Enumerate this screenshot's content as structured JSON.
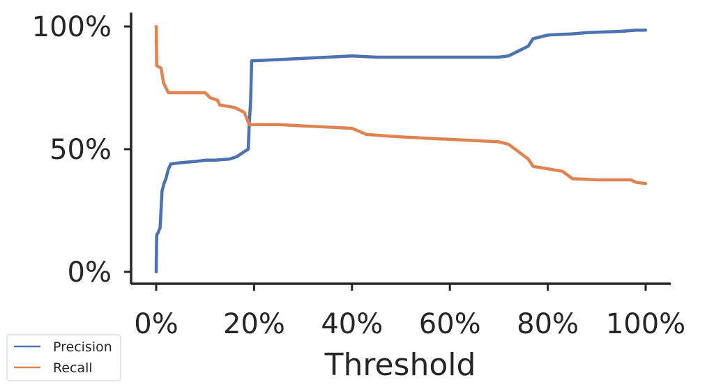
{
  "chart_data": {
    "type": "line",
    "xlabel": "Threshold",
    "ylabel": "",
    "xlim": [
      0,
      1
    ],
    "ylim": [
      0,
      1
    ],
    "x_ticks": [
      {
        "value": 0,
        "label": "0%"
      },
      {
        "value": 0.2,
        "label": "20%"
      },
      {
        "value": 0.4,
        "label": "40%"
      },
      {
        "value": 0.6,
        "label": "60%"
      },
      {
        "value": 0.8,
        "label": "80%"
      },
      {
        "value": 1.0,
        "label": "100%"
      }
    ],
    "y_ticks": [
      {
        "value": 0,
        "label": "0%"
      },
      {
        "value": 0.5,
        "label": "50%"
      },
      {
        "value": 1.0,
        "label": "100%"
      }
    ],
    "grid": false,
    "legend_position": "bottom-left",
    "series": [
      {
        "name": "Precision",
        "color": "#4c72b0",
        "points": [
          [
            0.0,
            0.0
          ],
          [
            0.001,
            0.15
          ],
          [
            0.004,
            0.16
          ],
          [
            0.008,
            0.18
          ],
          [
            0.012,
            0.33
          ],
          [
            0.016,
            0.36
          ],
          [
            0.02,
            0.38
          ],
          [
            0.025,
            0.42
          ],
          [
            0.03,
            0.44
          ],
          [
            0.05,
            0.445
          ],
          [
            0.08,
            0.45
          ],
          [
            0.1,
            0.455
          ],
          [
            0.12,
            0.455
          ],
          [
            0.15,
            0.46
          ],
          [
            0.165,
            0.47
          ],
          [
            0.18,
            0.49
          ],
          [
            0.188,
            0.5
          ],
          [
            0.19,
            0.6
          ],
          [
            0.193,
            0.7
          ],
          [
            0.195,
            0.86
          ],
          [
            0.25,
            0.865
          ],
          [
            0.3,
            0.87
          ],
          [
            0.4,
            0.88
          ],
          [
            0.45,
            0.875
          ],
          [
            0.6,
            0.875
          ],
          [
            0.7,
            0.875
          ],
          [
            0.72,
            0.88
          ],
          [
            0.74,
            0.9
          ],
          [
            0.76,
            0.92
          ],
          [
            0.77,
            0.95
          ],
          [
            0.8,
            0.965
          ],
          [
            0.85,
            0.97
          ],
          [
            0.88,
            0.975
          ],
          [
            0.95,
            0.98
          ],
          [
            0.98,
            0.985
          ],
          [
            1.0,
            0.985
          ]
        ]
      },
      {
        "name": "Recall",
        "color": "#dd8452",
        "points": [
          [
            0.0,
            1.0
          ],
          [
            0.001,
            0.84
          ],
          [
            0.01,
            0.83
          ],
          [
            0.015,
            0.77
          ],
          [
            0.025,
            0.73
          ],
          [
            0.05,
            0.73
          ],
          [
            0.1,
            0.73
          ],
          [
            0.11,
            0.71
          ],
          [
            0.125,
            0.7
          ],
          [
            0.13,
            0.68
          ],
          [
            0.16,
            0.67
          ],
          [
            0.18,
            0.65
          ],
          [
            0.19,
            0.6
          ],
          [
            0.25,
            0.6
          ],
          [
            0.3,
            0.595
          ],
          [
            0.35,
            0.59
          ],
          [
            0.4,
            0.585
          ],
          [
            0.43,
            0.56
          ],
          [
            0.5,
            0.55
          ],
          [
            0.6,
            0.54
          ],
          [
            0.7,
            0.53
          ],
          [
            0.72,
            0.52
          ],
          [
            0.74,
            0.49
          ],
          [
            0.76,
            0.46
          ],
          [
            0.77,
            0.43
          ],
          [
            0.8,
            0.42
          ],
          [
            0.83,
            0.41
          ],
          [
            0.85,
            0.38
          ],
          [
            0.9,
            0.375
          ],
          [
            0.97,
            0.375
          ],
          [
            0.98,
            0.365
          ],
          [
            1.0,
            0.36
          ]
        ]
      }
    ]
  }
}
